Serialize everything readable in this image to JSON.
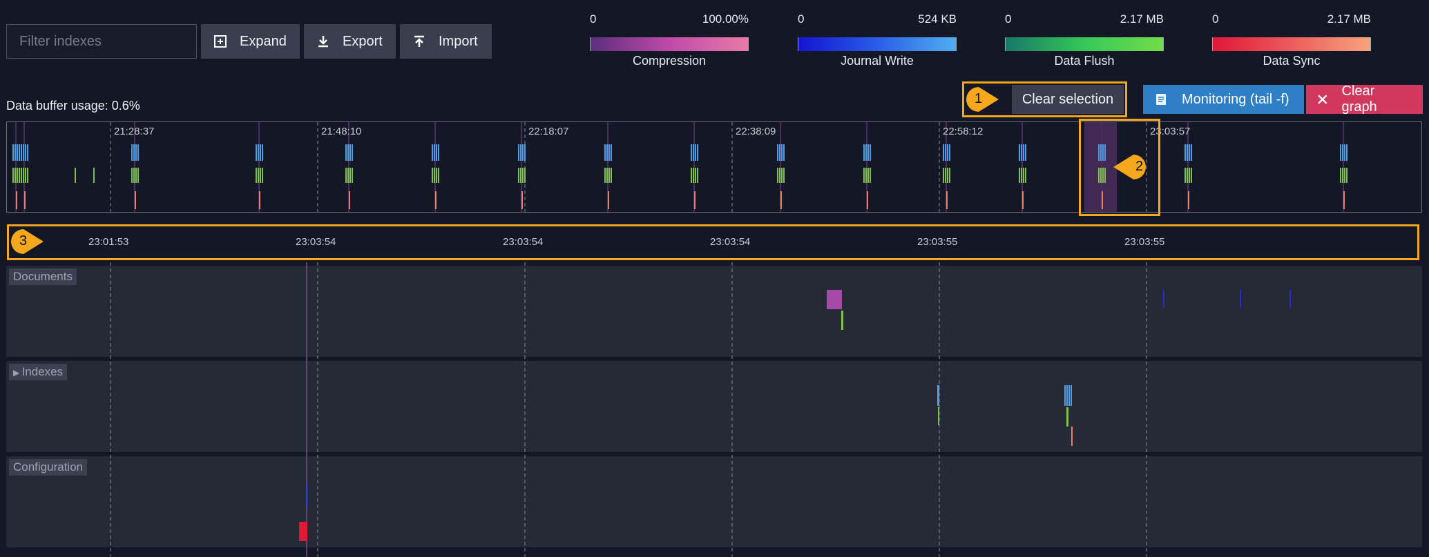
{
  "toolbar": {
    "filter_placeholder": "Filter indexes",
    "expand_label": "Expand",
    "export_label": "Export",
    "import_label": "Import"
  },
  "legends": [
    {
      "min": "0",
      "max": "100.00%",
      "name": "Compression",
      "from": "#5b2f7e",
      "to": "#e06aa8"
    },
    {
      "min": "0",
      "max": "524 KB",
      "name": "Journal Write",
      "from": "#1a1ad8",
      "to": "#4aa8f0"
    },
    {
      "min": "0",
      "max": "2.17 MB",
      "name": "Data Flush",
      "from": "#1a7a6a",
      "to": "#52d94a"
    },
    {
      "min": "0",
      "max": "2.17 MB",
      "name": "Data Sync",
      "from": "#e0203c",
      "to": "#f4a07c"
    }
  ],
  "status": {
    "buffer_usage": "Data buffer usage: 0.6%"
  },
  "actions": {
    "clear_selection_label": "Clear selection",
    "monitoring_label": "Monitoring (tail -f)",
    "clear_graph_label": "Clear graph"
  },
  "callouts": [
    "1",
    "2",
    "3"
  ],
  "overview": {
    "ticks": [
      "21:28:37",
      "21:48:10",
      "22:18:07",
      "22:38:09",
      "22:58:12",
      "23:03:57"
    ]
  },
  "detail_axis": {
    "ticks": [
      "23:01:53",
      "23:03:54",
      "23:03:54",
      "23:03:54",
      "23:03:55",
      "23:03:55"
    ]
  },
  "lanes": [
    {
      "label": "Documents",
      "collapsible": false
    },
    {
      "label": "Indexes",
      "collapsible": true
    },
    {
      "label": "Configuration",
      "collapsible": false
    }
  ],
  "colors": {
    "accent_highlight": "#f5a81c",
    "journal": "#4a9fe8",
    "flush": "#7fc24a",
    "sync": "#e8806a",
    "compression": "#a64aa8"
  }
}
